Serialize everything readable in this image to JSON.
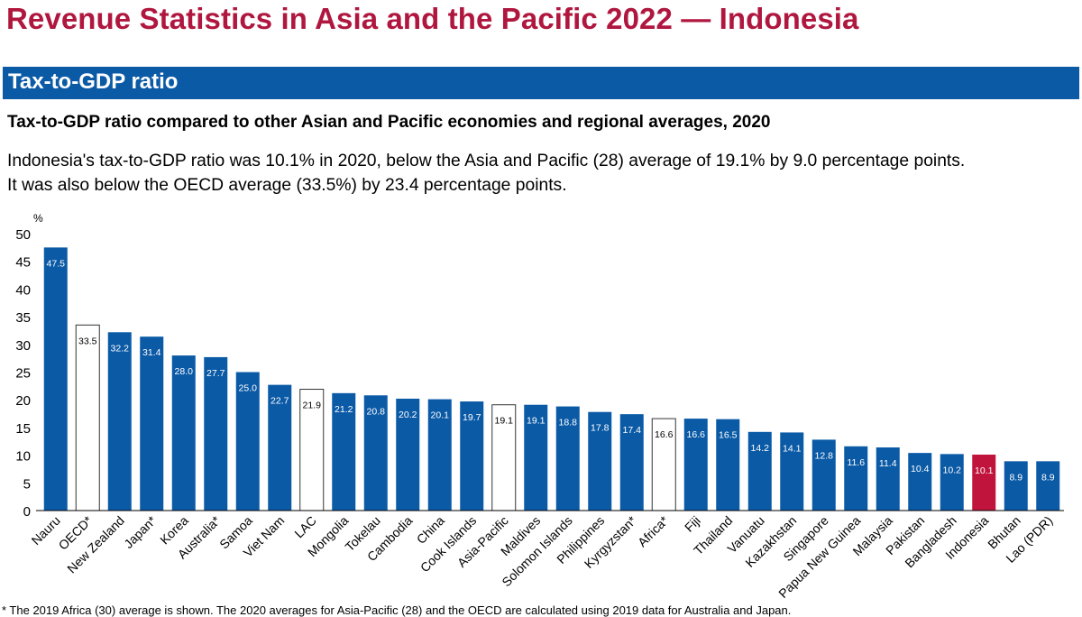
{
  "header": {
    "title": "Revenue Statistics in Asia and the Pacific 2022  —  Indonesia"
  },
  "section": {
    "title": "Tax-to-GDP ratio"
  },
  "description": {
    "heading": "Tax-to-GDP ratio compared to other Asian and Pacific economies and regional averages, 2020",
    "line1": "Indonesia's tax-to-GDP ratio was 10.1% in 2020, below the Asia and Pacific (28) average of 19.1% by 9.0 percentage points.",
    "line2": "It was also below the OECD average (33.5%) by 23.4 percentage points."
  },
  "colors": {
    "country_bar": "#0b5aa6",
    "average_bar": "#ffffff",
    "highlight_bar": "#c0143c",
    "title": "#b0173f"
  },
  "chart_data": {
    "type": "bar",
    "title": "Tax-to-GDP ratio compared to other Asian and Pacific economies and regional averages, 2020",
    "xlabel": "",
    "ylabel": "%",
    "ylim": [
      0,
      50
    ],
    "yticks": [
      0,
      5,
      10,
      15,
      20,
      25,
      30,
      35,
      40,
      45,
      50
    ],
    "grid": false,
    "categories": [
      "Nauru",
      "OECD*",
      "New Zealand",
      "Japan*",
      "Korea",
      "Australia*",
      "Samoa",
      "Viet Nam",
      "LAC",
      "Mongolia",
      "Tokelau",
      "Cambodia",
      "China",
      "Cook Islands",
      "Asia-Pacific",
      "Maldives",
      "Solomon Islands",
      "Philippines",
      "Kyrgyzstan*",
      "Africa*",
      "Fiji",
      "Thailand",
      "Vanuatu",
      "Kazakhstan",
      "Singapore",
      "Papua New Guinea",
      "Malaysia",
      "Pakistan",
      "Bangladesh",
      "Indonesia",
      "Bhutan",
      "Lao (PDR)"
    ],
    "values": [
      47.5,
      33.5,
      32.2,
      31.4,
      28.0,
      27.7,
      25.0,
      22.7,
      21.9,
      21.2,
      20.8,
      20.2,
      20.1,
      19.7,
      19.1,
      19.1,
      18.8,
      17.8,
      17.4,
      16.6,
      16.6,
      16.5,
      14.2,
      14.1,
      12.8,
      11.6,
      11.4,
      10.4,
      10.2,
      10.1,
      8.9,
      8.9
    ],
    "value_labels": [
      "47.5",
      "33.5",
      "32.2",
      "31.4",
      "28.0",
      "27.7",
      "25.0",
      "22.7",
      "21.9",
      "21.2",
      "20.8",
      "20.2",
      "20.1",
      "19.7",
      "19.1",
      "19.1",
      "18.8",
      "17.8",
      "17.4",
      "16.6",
      "16.6",
      "16.5",
      "14.2",
      "14.1",
      "12.8",
      "11.6",
      "11.4",
      "10.4",
      "10.2",
      "10.1",
      "8.9",
      "8.9"
    ],
    "bar_kind": [
      "country",
      "average",
      "country",
      "country",
      "country",
      "country",
      "country",
      "country",
      "average",
      "country",
      "country",
      "country",
      "country",
      "country",
      "average",
      "country",
      "country",
      "country",
      "country",
      "average",
      "country",
      "country",
      "country",
      "country",
      "country",
      "country",
      "country",
      "country",
      "country",
      "highlight",
      "country",
      "country"
    ]
  },
  "footnote": "* The 2019 Africa (30) average is shown. The 2020 averages for Asia-Pacific (28) and the OECD are calculated using 2019 data for Australia and Japan."
}
